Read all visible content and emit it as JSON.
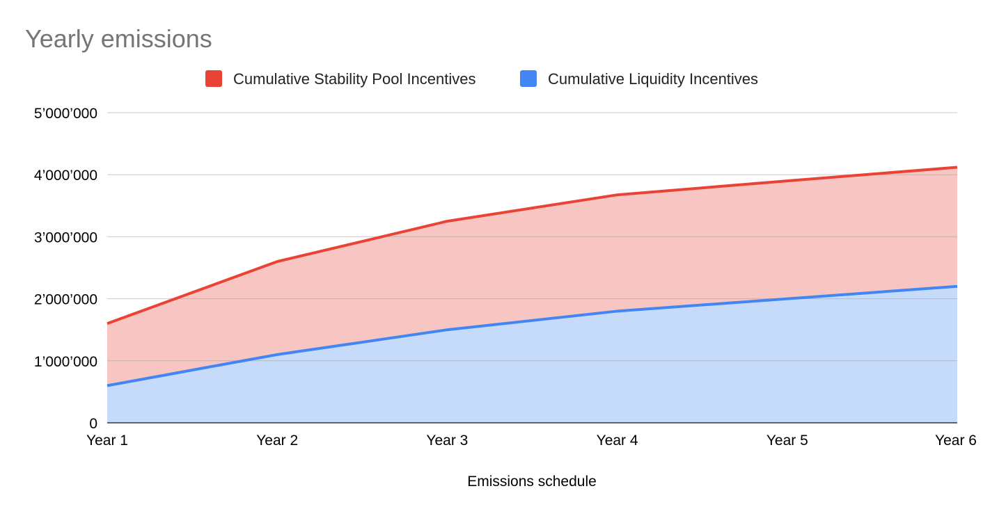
{
  "chart_data": {
    "type": "area",
    "stacked": true,
    "title": "Yearly emissions",
    "xlabel": "Emissions schedule",
    "ylabel": "",
    "categories": [
      "Year 1",
      "Year 2",
      "Year 3",
      "Year 4",
      "Year 5",
      "Year 6"
    ],
    "series": [
      {
        "name": "Cumulative Stability Pool Incentives",
        "color": "#ea4335",
        "fill": "#f8c6c2",
        "values": [
          1000000,
          1500000,
          1750000,
          1875000,
          1900000,
          1920000
        ]
      },
      {
        "name": "Cumulative Liquidity Incentives",
        "color": "#4285f4",
        "fill": "#c6dafa",
        "values": [
          600000,
          1100000,
          1500000,
          1800000,
          2000000,
          2200000
        ]
      }
    ],
    "ylim": [
      0,
      5000000
    ],
    "yticks": [
      {
        "value": 0,
        "label": "0"
      },
      {
        "value": 1000000,
        "label": "1’000’000"
      },
      {
        "value": 2000000,
        "label": "2’000’000"
      },
      {
        "value": 3000000,
        "label": "3’000’000"
      },
      {
        "value": 4000000,
        "label": "4’000’000"
      },
      {
        "value": 5000000,
        "label": "5’000’000"
      }
    ],
    "grid": true,
    "legend": "top"
  }
}
